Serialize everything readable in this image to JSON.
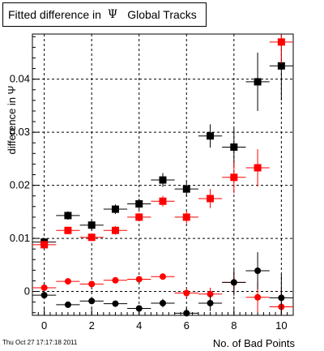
{
  "title": {
    "prefix": "Fitted difference in",
    "symbol": "Ψ",
    "suffix": "Global Tracks"
  },
  "timestamp": "Thu Oct 27 17:17:18 2011",
  "colors": {
    "black_series": "#000000",
    "red_series": "#ff0000",
    "grid": "#000000",
    "background": "#ffffff"
  },
  "chart_data": {
    "type": "scatter",
    "title": "Fitted difference in Ψ Global Tracks",
    "xlabel": "No. of Bad Points",
    "ylabel": "difference in Ψ",
    "xlim": [
      -0.5,
      10.5
    ],
    "ylim": [
      -0.0045,
      0.0485
    ],
    "xticks": [
      0,
      2,
      4,
      6,
      8,
      10
    ],
    "xtick_labels": [
      "0",
      "2",
      "4",
      "6",
      "8",
      "10"
    ],
    "yticks": [
      0,
      0.01,
      0.02,
      0.03,
      0.04
    ],
    "ytick_labels": [
      "0",
      "0.01",
      "0.02",
      "0.03",
      "0.04"
    ],
    "grid": true,
    "series": [
      {
        "marker": "square",
        "color": "#000000",
        "x": [
          0,
          1,
          2,
          3,
          4,
          5,
          6,
          7,
          8,
          9,
          10
        ],
        "y": [
          0.0093,
          0.0143,
          0.0125,
          0.0155,
          0.0165,
          0.021,
          0.0193,
          0.0293,
          0.0272,
          0.0395,
          0.0425
        ],
        "yerr": [
          0.0008,
          0.0008,
          0.0009,
          0.0009,
          0.001,
          0.0013,
          0.0014,
          0.0022,
          0.0035,
          0.0055,
          0.0065
        ]
      },
      {
        "marker": "square",
        "color": "#ff0000",
        "x": [
          0,
          1,
          2,
          3,
          4,
          5,
          6,
          7,
          8,
          9,
          10
        ],
        "y": [
          0.0088,
          0.0115,
          0.0102,
          0.0115,
          0.014,
          0.017,
          0.014,
          0.0175,
          0.0215,
          0.0233,
          0.047
        ],
        "yerr": [
          0.0007,
          0.0007,
          0.0007,
          0.0008,
          0.0008,
          0.001,
          0.0012,
          0.0018,
          0.003,
          0.0035,
          0.004
        ]
      },
      {
        "marker": "circle",
        "color": "#ff0000",
        "x": [
          0,
          1,
          2,
          3,
          4,
          5,
          6,
          7,
          8,
          9,
          10
        ],
        "y": [
          0.0007,
          0.0019,
          0.0014,
          0.0021,
          0.0023,
          0.0028,
          -0.0003,
          -0.0005,
          0.0017,
          -0.0011,
          -0.0029
        ],
        "yerr": [
          0.0003,
          0.0003,
          0.0003,
          0.0004,
          0.0004,
          0.0006,
          0.0008,
          0.0012,
          0.002,
          0.0028,
          0.0035
        ]
      },
      {
        "marker": "circle",
        "color": "#000000",
        "x": [
          0,
          1,
          2,
          3,
          4,
          5,
          6,
          7,
          8,
          9,
          10
        ],
        "y": [
          -0.0007,
          -0.0025,
          -0.0018,
          -0.0023,
          -0.0032,
          -0.0022,
          -0.0041,
          -0.0022,
          0.0017,
          0.0039,
          -0.0012
        ],
        "yerr": [
          0.0004,
          0.0004,
          0.0005,
          0.0005,
          0.0006,
          0.0008,
          0.001,
          0.0015,
          0.0025,
          0.0035,
          0.0045
        ]
      }
    ]
  }
}
